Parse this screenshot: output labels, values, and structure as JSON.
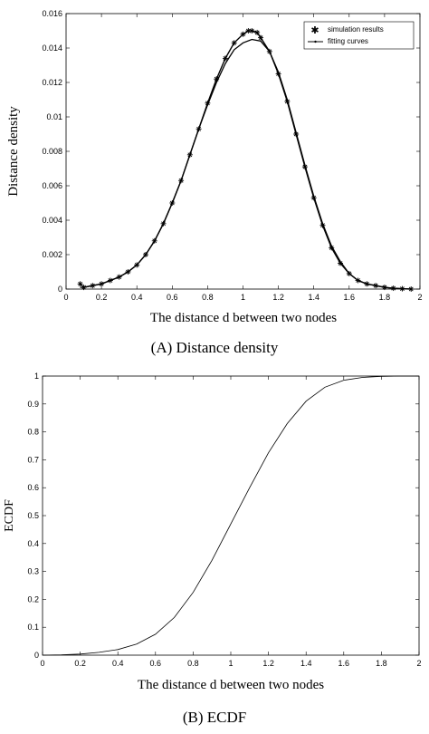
{
  "chart_data": [
    {
      "type": "line",
      "caption": "(A) Distance density",
      "xlabel": "The distance d between two nodes",
      "ylabel": "Distance density",
      "xlim": [
        0,
        2
      ],
      "ylim": [
        0,
        0.016
      ],
      "xticks": [
        "0",
        "0.2",
        "0.4",
        "0.6",
        "0.8",
        "1",
        "1.2",
        "1.4",
        "1.6",
        "1.8",
        "2"
      ],
      "yticks": [
        "0",
        "0.002",
        "0.004",
        "0.006",
        "0.008",
        "0.01",
        "0.012",
        "0.014",
        "0.016"
      ],
      "legend_position": "top-right",
      "series": [
        {
          "name": "simulation results",
          "marker": "star",
          "x": [
            0.08,
            0.1,
            0.15,
            0.2,
            0.25,
            0.3,
            0.35,
            0.4,
            0.45,
            0.5,
            0.55,
            0.6,
            0.65,
            0.7,
            0.75,
            0.8,
            0.85,
            0.9,
            0.95,
            1.0,
            1.03,
            1.05,
            1.08,
            1.1,
            1.15,
            1.2,
            1.25,
            1.3,
            1.35,
            1.4,
            1.45,
            1.5,
            1.55,
            1.6,
            1.65,
            1.7,
            1.75,
            1.8,
            1.85,
            1.9,
            1.95
          ],
          "values": [
            0.0003,
            0.0001,
            0.0002,
            0.0003,
            0.0005,
            0.0007,
            0.001,
            0.0014,
            0.002,
            0.0028,
            0.0038,
            0.005,
            0.0063,
            0.0078,
            0.0093,
            0.0108,
            0.0122,
            0.0134,
            0.0143,
            0.0148,
            0.015,
            0.015,
            0.0149,
            0.0146,
            0.0138,
            0.0125,
            0.0109,
            0.009,
            0.0071,
            0.0053,
            0.0037,
            0.0024,
            0.0015,
            0.0009,
            0.0005,
            0.0003,
            0.0002,
            0.0001,
            5e-05,
            2e-05,
            0.0
          ]
        },
        {
          "name": "fitting curves",
          "marker": "none",
          "x": [
            0.08,
            0.1,
            0.15,
            0.2,
            0.25,
            0.3,
            0.35,
            0.4,
            0.45,
            0.5,
            0.55,
            0.6,
            0.65,
            0.7,
            0.75,
            0.8,
            0.85,
            0.9,
            0.95,
            1.0,
            1.05,
            1.1,
            1.15,
            1.2,
            1.25,
            1.3,
            1.35,
            1.4,
            1.45,
            1.5,
            1.55,
            1.6,
            1.65,
            1.7,
            1.75,
            1.8,
            1.85,
            1.9,
            1.95
          ],
          "values": [
            0.0001,
            0.0001,
            0.0002,
            0.0003,
            0.0005,
            0.0007,
            0.001,
            0.0014,
            0.002,
            0.0028,
            0.0038,
            0.005,
            0.0063,
            0.0078,
            0.0093,
            0.0107,
            0.012,
            0.0131,
            0.0139,
            0.0143,
            0.0145,
            0.0144,
            0.0138,
            0.0126,
            0.011,
            0.0091,
            0.0072,
            0.0054,
            0.0038,
            0.0025,
            0.0016,
            0.0009,
            0.0005,
            0.0003,
            0.0002,
            0.0001,
            5e-05,
            2e-05,
            0.0
          ]
        }
      ]
    },
    {
      "type": "line",
      "caption": "(B) ECDF",
      "xlabel": "The distance d between two nodes",
      "ylabel": "ECDF",
      "xlim": [
        0,
        2
      ],
      "ylim": [
        0,
        1
      ],
      "xticks": [
        "0",
        "0.2",
        "0.4",
        "0.6",
        "0.8",
        "1",
        "1.2",
        "1.4",
        "1.6",
        "1.8",
        "2"
      ],
      "yticks": [
        "0",
        "0.1",
        "0.2",
        "0.3",
        "0.4",
        "0.5",
        "0.6",
        "0.7",
        "0.8",
        "0.9",
        "1"
      ],
      "series": [
        {
          "x": [
            0,
            0.1,
            0.2,
            0.3,
            0.4,
            0.5,
            0.6,
            0.7,
            0.8,
            0.9,
            1.0,
            1.1,
            1.2,
            1.3,
            1.4,
            1.5,
            1.6,
            1.7,
            1.8,
            1.9,
            2.0
          ],
          "values": [
            0,
            0.001,
            0.004,
            0.01,
            0.02,
            0.04,
            0.075,
            0.135,
            0.225,
            0.34,
            0.47,
            0.6,
            0.725,
            0.83,
            0.91,
            0.96,
            0.985,
            0.995,
            0.999,
            1.0,
            1.0
          ]
        }
      ]
    }
  ]
}
